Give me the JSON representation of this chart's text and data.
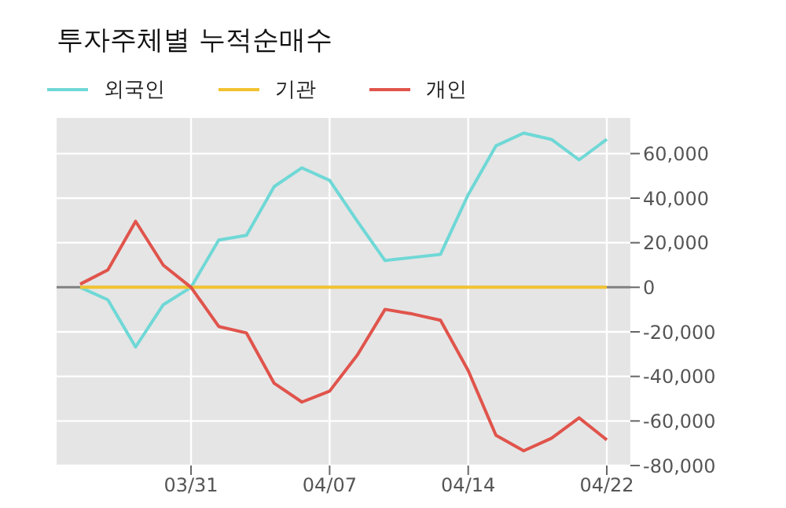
{
  "chart_data": {
    "type": "line",
    "title": "투자주체별 누적순매수",
    "categories": [
      null,
      null,
      null,
      null,
      "03/31",
      null,
      null,
      null,
      null,
      "04/07",
      null,
      null,
      null,
      null,
      "04/14",
      null,
      null,
      null,
      null,
      "04/22"
    ],
    "series": [
      {
        "name": "외국인",
        "color": "#6fd8d6",
        "values": [
          0,
          -5600,
          -26800,
          -7800,
          0,
          21200,
          23300,
          45200,
          53600,
          48000,
          29600,
          12000,
          13400,
          14800,
          41600,
          63500,
          69200,
          66400,
          57200,
          66400
        ]
      },
      {
        "name": "기관",
        "color": "#f2c230",
        "values": [
          0,
          0,
          0,
          0,
          0,
          0,
          0,
          0,
          0,
          0,
          0,
          0,
          0,
          0,
          0,
          0,
          0,
          0,
          0,
          0
        ]
      },
      {
        "name": "개인",
        "color": "#e0544c",
        "values": [
          1400,
          7800,
          29600,
          9900,
          0,
          -17600,
          -20500,
          -43100,
          -51500,
          -46600,
          -30400,
          -9900,
          -12000,
          -14800,
          -37400,
          -66400,
          -73400,
          -67800,
          -58600,
          -68500
        ]
      }
    ],
    "ylim": [
      -80000,
      76000
    ],
    "yticks": [
      {
        "value": -80000,
        "label": "-80,000"
      },
      {
        "value": -60000,
        "label": "-60,000"
      },
      {
        "value": -40000,
        "label": "-40,000"
      },
      {
        "value": -20000,
        "label": "-20,000"
      },
      0,
      {
        "value": 20000,
        "label": "20,000"
      },
      {
        "value": 40000,
        "label": "40,000"
      },
      {
        "value": 60000,
        "label": "60,000"
      }
    ],
    "ref_lines": [
      {
        "axis": "y",
        "value": 0,
        "color": "#808080"
      }
    ],
    "grid": true,
    "legend": "top left",
    "marker": "none",
    "line_style": "solid"
  }
}
